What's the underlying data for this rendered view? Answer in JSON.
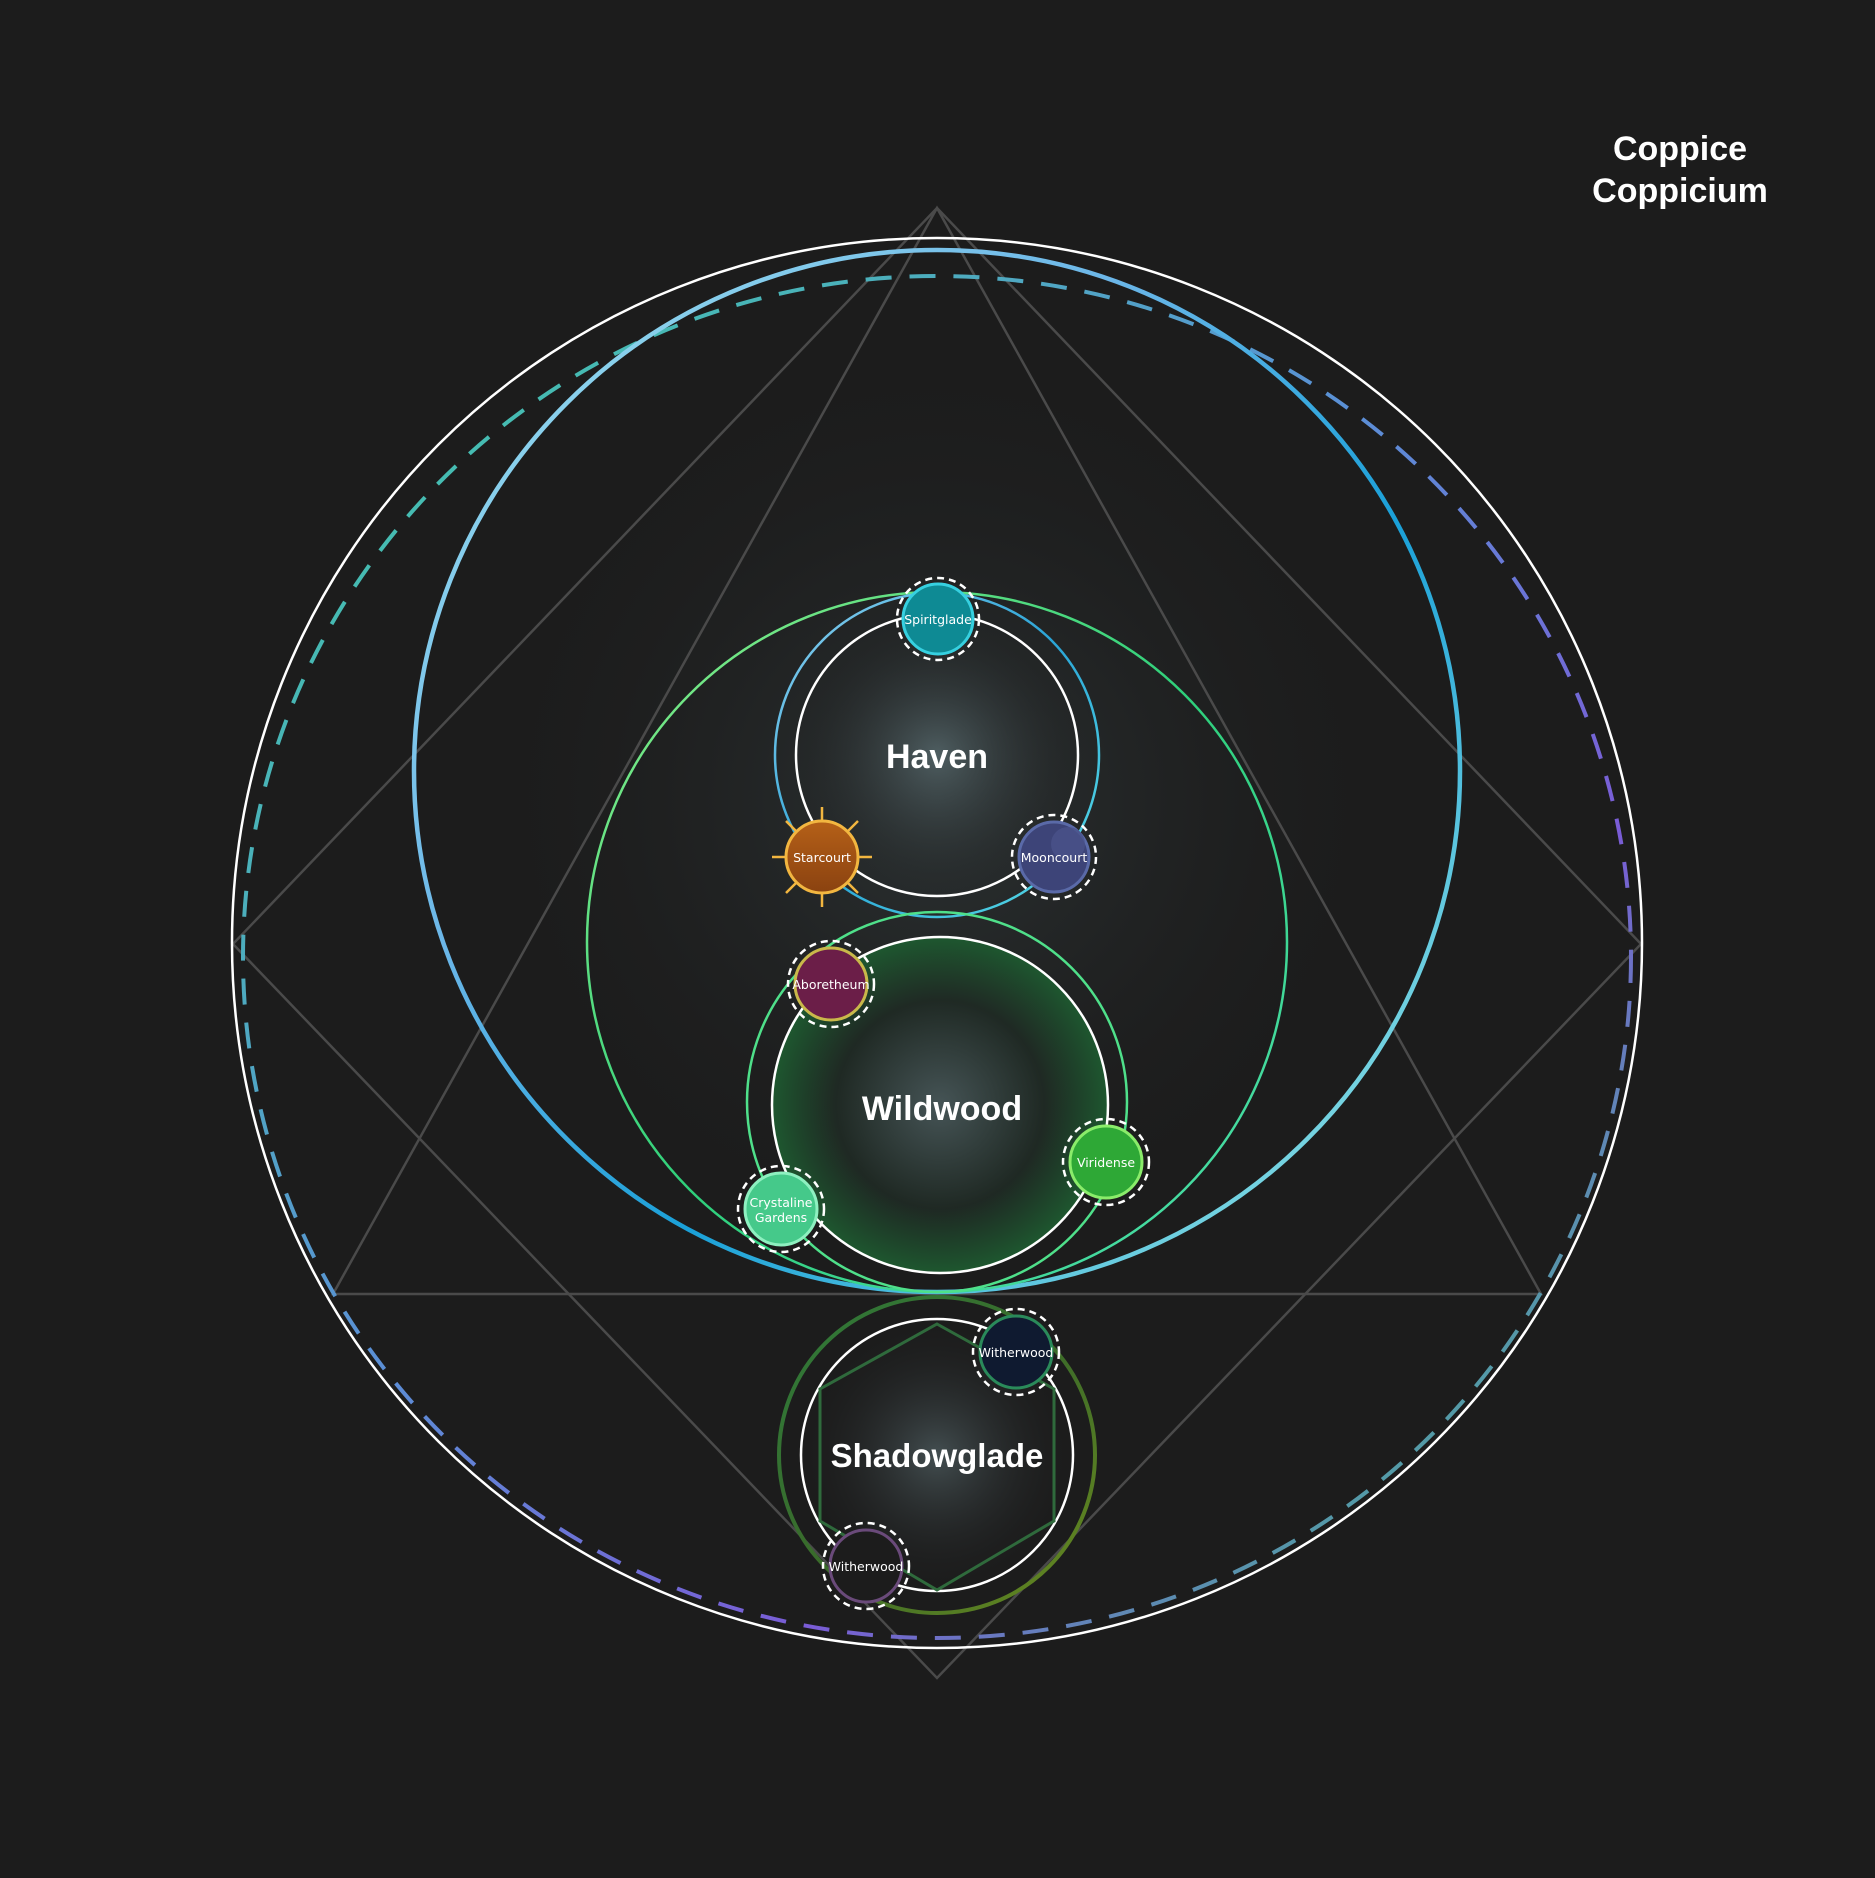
{
  "title": {
    "line1": "Coppice",
    "line2": "Coppicium"
  },
  "realms": {
    "haven": "Haven",
    "wildwood": "Wildwood",
    "shadowglade": "Shadowglade"
  },
  "nodes": {
    "spiritglade": "Spiritglade",
    "starcourt": "Starcourt",
    "mooncourt": "Mooncourt",
    "aboretheum": "Aboretheum",
    "viridense_label": "Viridense",
    "crystaline_line1": "Crystaline",
    "crystaline_line2": "Gardens",
    "witherwood_upper": "Witherwood",
    "witherwood_lower": "Witherwood"
  },
  "colors": {
    "background": "#1c1c1c",
    "outline": "#ffffff",
    "guide": "#4a4a4a",
    "cyan": "#38c6e0",
    "green": "#3ddc84",
    "purple": "#7a5cd6",
    "spiritglade": "#0e8a94",
    "starcourt": "#b05a12",
    "mooncourt": "#3d4478",
    "aboretheum": "#6b1e48",
    "viridense": "#2ea836",
    "crystaline": "#45c98a",
    "witherwood": "#0f1a30"
  }
}
